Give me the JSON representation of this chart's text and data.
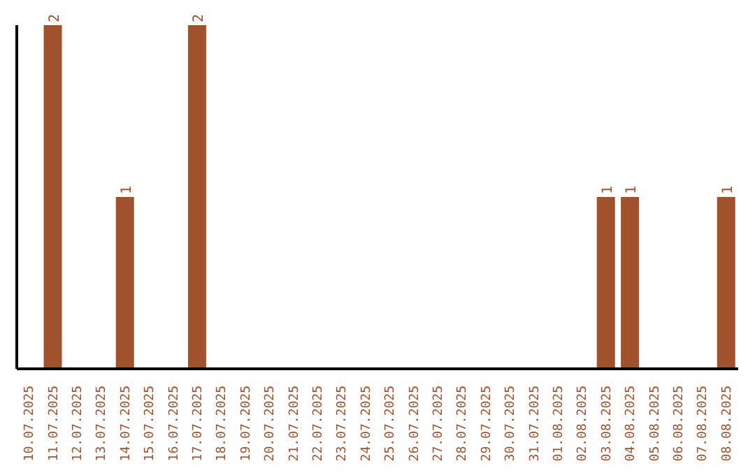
{
  "chart_data": {
    "type": "bar",
    "categories": [
      "10.07.2025",
      "11.07.2025",
      "12.07.2025",
      "13.07.2025",
      "14.07.2025",
      "15.07.2025",
      "16.07.2025",
      "17.07.2025",
      "18.07.2025",
      "19.07.2025",
      "20.07.2025",
      "21.07.2025",
      "22.07.2025",
      "23.07.2025",
      "24.07.2025",
      "25.07.2025",
      "26.07.2025",
      "27.07.2025",
      "28.07.2025",
      "29.07.2025",
      "30.07.2025",
      "31.07.2025",
      "01.08.2025",
      "02.08.2025",
      "03.08.2025",
      "04.08.2025",
      "05.08.2025",
      "06.08.2025",
      "07.08.2025",
      "08.08.2025"
    ],
    "values": [
      0,
      2,
      0,
      0,
      1,
      0,
      0,
      2,
      0,
      0,
      0,
      0,
      0,
      0,
      0,
      0,
      0,
      0,
      0,
      0,
      0,
      0,
      0,
      0,
      1,
      1,
      0,
      0,
      0,
      1
    ],
    "value_labels": [
      null,
      "2",
      null,
      null,
      "1",
      null,
      null,
      "2",
      null,
      null,
      null,
      null,
      null,
      null,
      null,
      null,
      null,
      null,
      null,
      null,
      null,
      null,
      null,
      null,
      "1",
      "1",
      null,
      null,
      null,
      "1"
    ],
    "color": "#a0522d",
    "grid": false,
    "legend": false
  }
}
